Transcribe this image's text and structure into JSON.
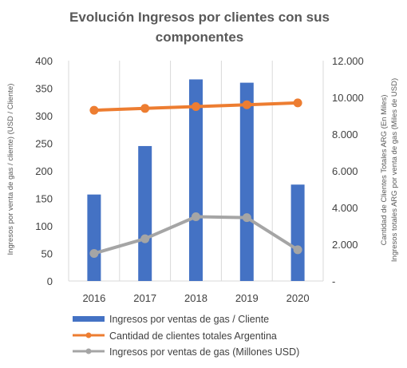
{
  "chart_data": {
    "type": "bar",
    "title_line1": "Evolución Ingresos por clientes con sus",
    "title_line2": "componentes",
    "categories": [
      "2016",
      "2017",
      "2018",
      "2019",
      "2020"
    ],
    "series": [
      {
        "name": "Ingresos por ventas de gas / Cliente",
        "type": "bar",
        "axis": "left",
        "values": [
          157,
          245,
          366,
          360,
          175
        ],
        "color": "#4472C4"
      },
      {
        "name": "Cantidad de clientes totales Argentina",
        "type": "line",
        "axis": "right",
        "values": [
          9300,
          9400,
          9500,
          9600,
          9700
        ],
        "color": "#ED7D31"
      },
      {
        "name": "Ingresos por ventas de gas (Millones USD)",
        "type": "line",
        "axis": "right",
        "values": [
          1500,
          2300,
          3500,
          3450,
          1700
        ],
        "color": "#A5A5A5"
      }
    ],
    "ylabel_left": "Ingresos por venta de gas / cliente)  (USD / Cliente)",
    "ylabel_right_1": "Cantidad de Clientes Totales  ARG (En Miles)",
    "ylabel_right_2": "Ingresos  totales  ARG por venta de gas (Miles de USD)",
    "ylim_left": [
      0,
      400
    ],
    "yticks_left": [
      "0",
      "50",
      "100",
      "150",
      "200",
      "250",
      "300",
      "350",
      "400"
    ],
    "ylim_right": [
      0,
      12000
    ],
    "yticks_right": [
      "-",
      "2.000",
      "4.000",
      "6.000",
      "8.000",
      "10.000",
      "12.000"
    ],
    "grid": "vertical-only",
    "legend_position": "bottom"
  }
}
